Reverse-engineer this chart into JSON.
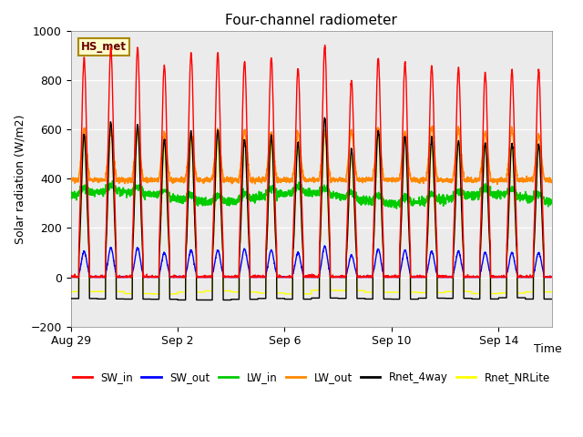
{
  "title": "Four-channel radiometer",
  "xlabel": "Time",
  "ylabel": "Solar radiation (W/m2)",
  "ylim": [
    -200,
    1000
  ],
  "station_label": "HS_met",
  "background_color": "#ebebeb",
  "x_ticks": [
    "Aug 29",
    "Sep 2",
    "Sep 6",
    "Sep 10",
    "Sep 14"
  ],
  "x_tick_days": [
    0,
    4,
    8,
    12,
    16
  ],
  "legend": [
    {
      "label": "SW_in",
      "color": "#ff0000"
    },
    {
      "label": "SW_out",
      "color": "#0000ff"
    },
    {
      "label": "LW_in",
      "color": "#00cc00"
    },
    {
      "label": "LW_out",
      "color": "#ff8800"
    },
    {
      "label": "Rnet_4way",
      "color": "#000000"
    },
    {
      "label": "Rnet_NRLite",
      "color": "#ffff00"
    }
  ],
  "n_days": 18,
  "pts_per_day": 144,
  "title_fontsize": 11,
  "tick_fontsize": 9,
  "ylabel_fontsize": 9
}
